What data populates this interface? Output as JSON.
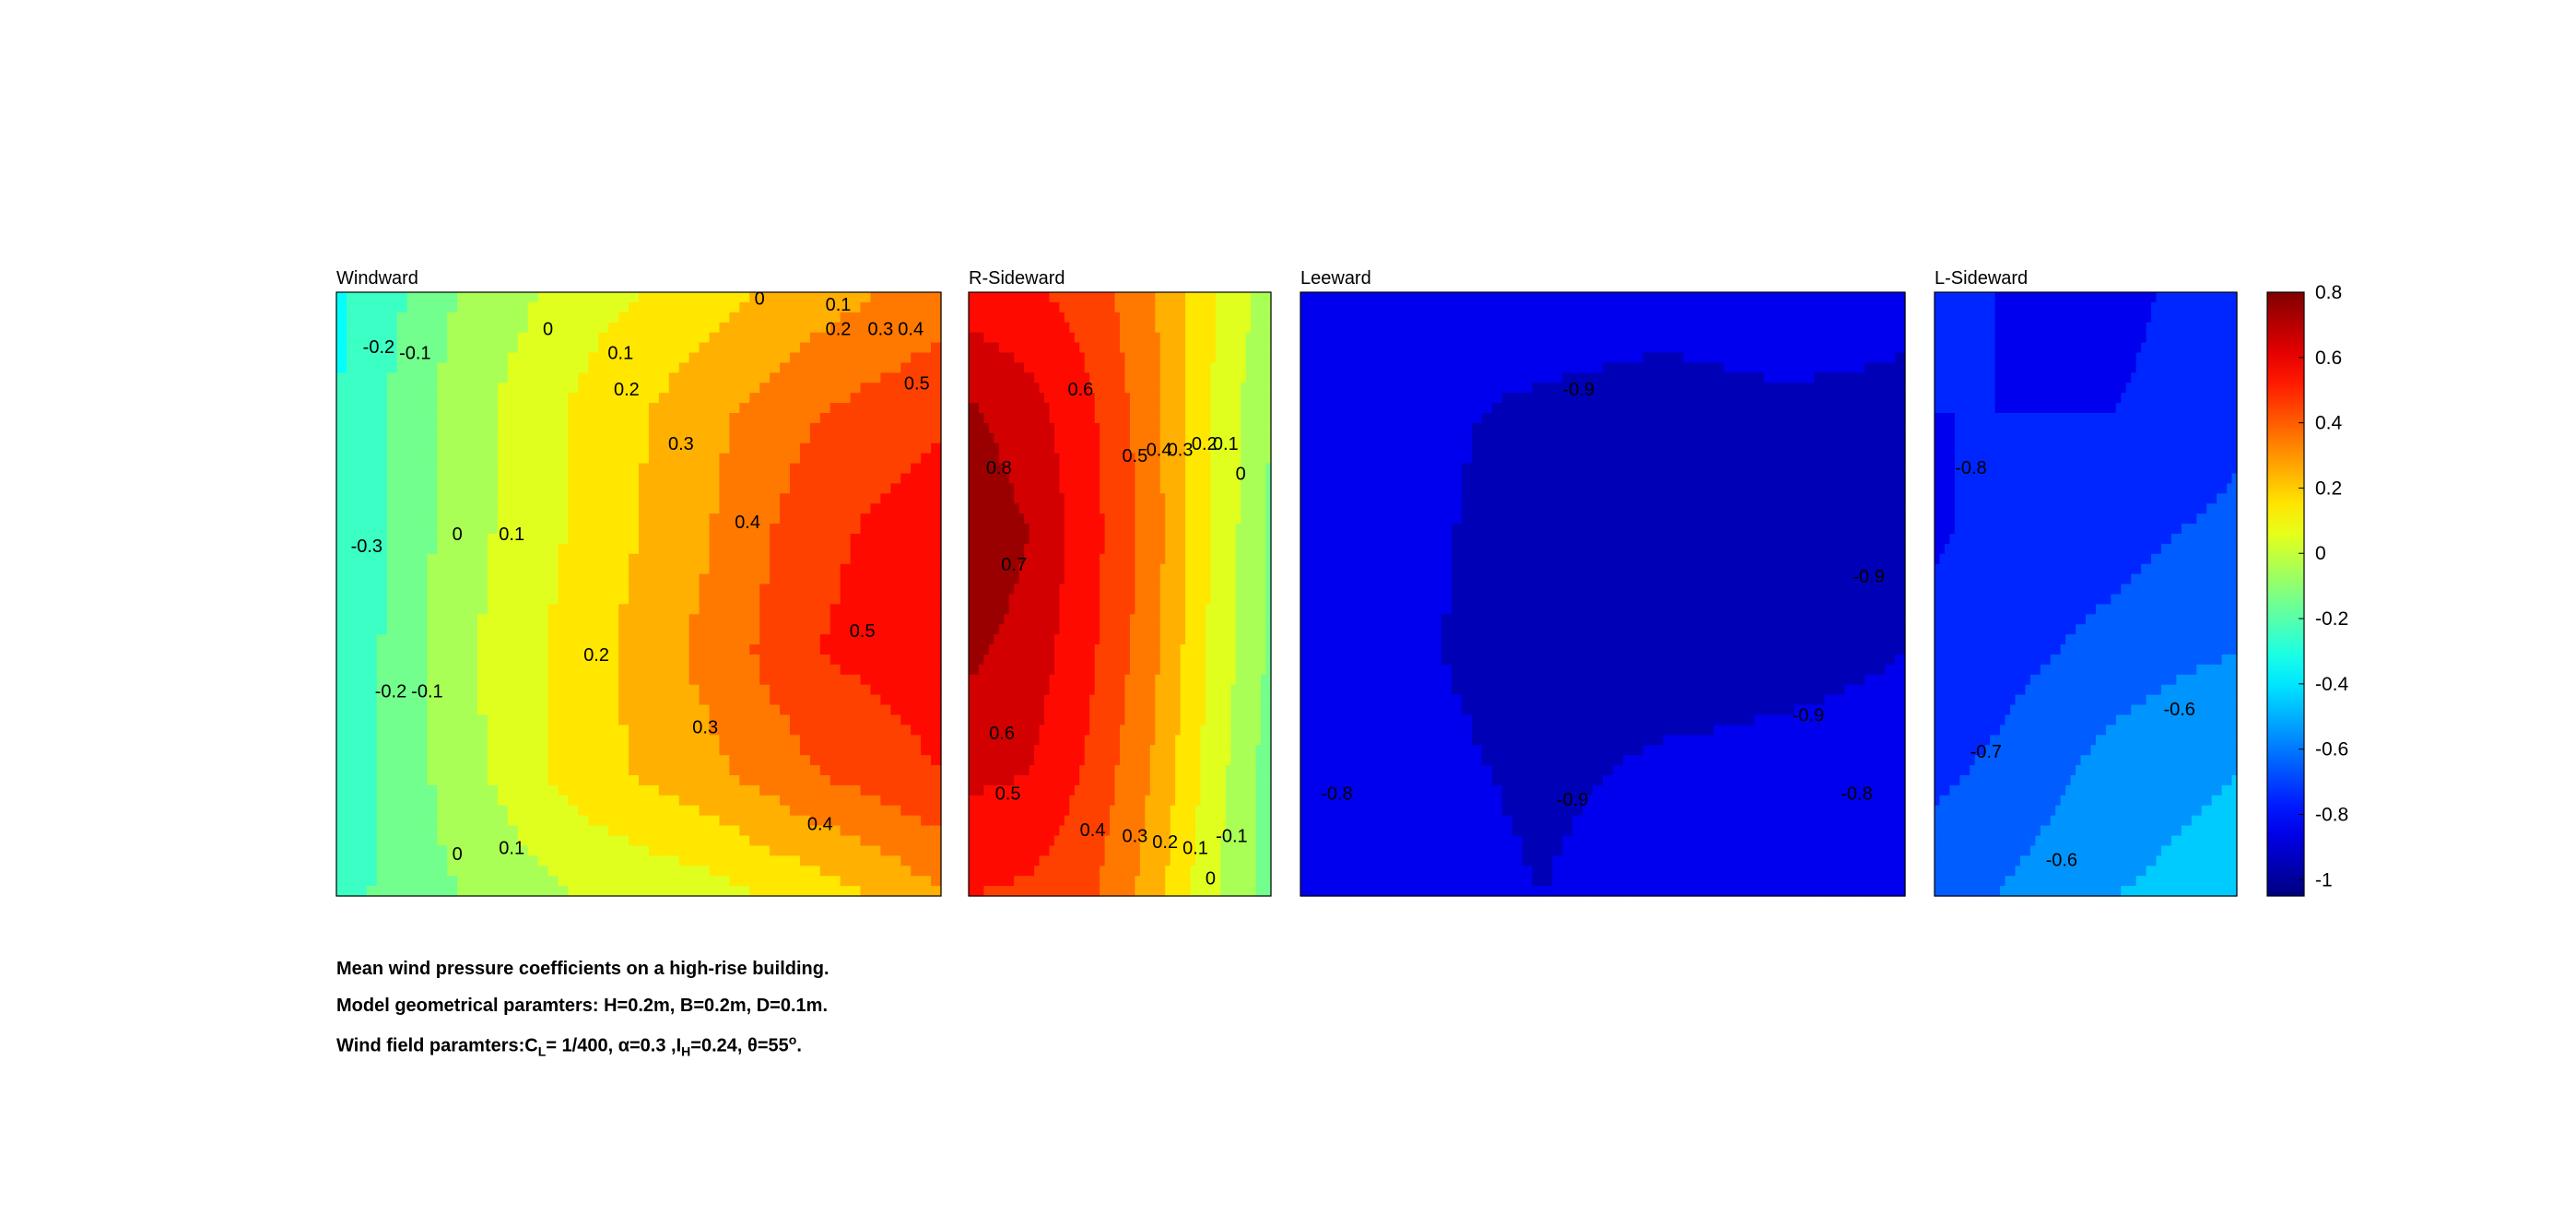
{
  "chart_data": [
    {
      "type": "contour",
      "title": "Windward",
      "colormap": "jet",
      "clim": [
        -1.05,
        0.8
      ],
      "x": [
        0,
        0.2,
        0.4,
        0.6,
        0.8,
        1.0
      ],
      "y": [
        0,
        0.2,
        0.4,
        0.6,
        0.8,
        1.0
      ],
      "z": [
        [
          -0.33,
          -0.1,
          0.05,
          0.15,
          0.25,
          0.35
        ],
        [
          -0.3,
          -0.05,
          0.12,
          0.26,
          0.4,
          0.48
        ],
        [
          -0.3,
          -0.05,
          0.12,
          0.28,
          0.48,
          0.56
        ],
        [
          -0.3,
          -0.03,
          0.15,
          0.32,
          0.5,
          0.56
        ],
        [
          -0.28,
          -0.05,
          0.15,
          0.26,
          0.4,
          0.5
        ],
        [
          -0.24,
          -0.1,
          0.0,
          0.05,
          0.15,
          0.28
        ]
      ],
      "contour_labels": [
        {
          "text": "-0.2",
          "x": 0.07,
          "y": 0.09
        },
        {
          "text": "-0.1",
          "x": 0.13,
          "y": 0.1
        },
        {
          "text": "0",
          "x": 0.35,
          "y": 0.06
        },
        {
          "text": "0",
          "x": 0.7,
          "y": 0.01
        },
        {
          "text": "0.1",
          "x": 0.83,
          "y": 0.02
        },
        {
          "text": "0.1",
          "x": 0.47,
          "y": 0.1
        },
        {
          "text": "0.2",
          "x": 0.83,
          "y": 0.06
        },
        {
          "text": "0.3",
          "x": 0.9,
          "y": 0.06
        },
        {
          "text": "0.4",
          "x": 0.95,
          "y": 0.06
        },
        {
          "text": "0.2",
          "x": 0.48,
          "y": 0.16
        },
        {
          "text": "0.5",
          "x": 0.96,
          "y": 0.15
        },
        {
          "text": "0.3",
          "x": 0.57,
          "y": 0.25
        },
        {
          "text": "-0.3",
          "x": 0.05,
          "y": 0.42
        },
        {
          "text": "0",
          "x": 0.2,
          "y": 0.4
        },
        {
          "text": "0.1",
          "x": 0.29,
          "y": 0.4
        },
        {
          "text": "0.4",
          "x": 0.68,
          "y": 0.38
        },
        {
          "text": "0.5",
          "x": 0.87,
          "y": 0.56
        },
        {
          "text": "0.2",
          "x": 0.43,
          "y": 0.6
        },
        {
          "text": "-0.2",
          "x": 0.09,
          "y": 0.66
        },
        {
          "text": "-0.1",
          "x": 0.15,
          "y": 0.66
        },
        {
          "text": "0.3",
          "x": 0.61,
          "y": 0.72
        },
        {
          "text": "0.4",
          "x": 0.8,
          "y": 0.88
        },
        {
          "text": "0",
          "x": 0.2,
          "y": 0.93
        },
        {
          "text": "0.1",
          "x": 0.29,
          "y": 0.92
        }
      ]
    },
    {
      "type": "contour",
      "title": "R-Sideward",
      "colormap": "jet",
      "clim": [
        -1.05,
        0.8
      ],
      "x": [
        0,
        0.2,
        0.4,
        0.6,
        0.8,
        1.0
      ],
      "y": [
        0,
        0.2,
        0.4,
        0.6,
        0.8,
        1.0
      ],
      "z": [
        [
          0.55,
          0.52,
          0.45,
          0.32,
          0.12,
          -0.05
        ],
        [
          0.72,
          0.64,
          0.52,
          0.34,
          0.1,
          -0.1
        ],
        [
          0.78,
          0.7,
          0.54,
          0.36,
          0.1,
          -0.12
        ],
        [
          0.72,
          0.66,
          0.52,
          0.34,
          0.08,
          -0.12
        ],
        [
          0.62,
          0.6,
          0.48,
          0.3,
          0.06,
          -0.15
        ],
        [
          0.5,
          0.48,
          0.42,
          0.26,
          0.02,
          -0.15
        ]
      ],
      "contour_labels": [
        {
          "text": "0.6",
          "x": 0.37,
          "y": 0.16
        },
        {
          "text": "0.8",
          "x": 0.1,
          "y": 0.29
        },
        {
          "text": "0.5",
          "x": 0.55,
          "y": 0.27
        },
        {
          "text": "0.4",
          "x": 0.63,
          "y": 0.26
        },
        {
          "text": "0.3",
          "x": 0.7,
          "y": 0.26
        },
        {
          "text": "0.2",
          "x": 0.78,
          "y": 0.25
        },
        {
          "text": "0.1",
          "x": 0.85,
          "y": 0.25
        },
        {
          "text": "0",
          "x": 0.9,
          "y": 0.3
        },
        {
          "text": "0.7",
          "x": 0.15,
          "y": 0.45
        },
        {
          "text": "0.6",
          "x": 0.11,
          "y": 0.73
        },
        {
          "text": "0.5",
          "x": 0.13,
          "y": 0.83
        },
        {
          "text": "0.4",
          "x": 0.41,
          "y": 0.89
        },
        {
          "text": "0.3",
          "x": 0.55,
          "y": 0.9
        },
        {
          "text": "0.2",
          "x": 0.65,
          "y": 0.91
        },
        {
          "text": "0.1",
          "x": 0.75,
          "y": 0.92
        },
        {
          "text": "-0.1",
          "x": 0.87,
          "y": 0.9
        },
        {
          "text": "0",
          "x": 0.8,
          "y": 0.97
        }
      ]
    },
    {
      "type": "contour",
      "title": "Leeward",
      "colormap": "jet",
      "clim": [
        -1.05,
        0.8
      ],
      "x": [
        0,
        0.2,
        0.4,
        0.6,
        0.8,
        1.0
      ],
      "y": [
        0,
        0.2,
        0.4,
        0.6,
        0.8,
        1.0
      ],
      "z": [
        [
          -0.85,
          -0.86,
          -0.84,
          -0.86,
          -0.84,
          -0.88
        ],
        [
          -0.86,
          -0.88,
          -0.92,
          -0.94,
          -0.92,
          -0.92
        ],
        [
          -0.86,
          -0.88,
          -0.95,
          -0.95,
          -0.94,
          -0.92
        ],
        [
          -0.86,
          -0.89,
          -0.95,
          -0.95,
          -0.94,
          -0.9
        ],
        [
          -0.86,
          -0.87,
          -0.92,
          -0.88,
          -0.86,
          -0.84
        ],
        [
          -0.86,
          -0.86,
          -0.9,
          -0.84,
          -0.83,
          -0.8
        ]
      ],
      "contour_labels": [
        {
          "text": "-0.9",
          "x": 0.46,
          "y": 0.16
        },
        {
          "text": "-0.9",
          "x": 0.94,
          "y": 0.47
        },
        {
          "text": "-0.9",
          "x": 0.84,
          "y": 0.7
        },
        {
          "text": "-0.8",
          "x": 0.06,
          "y": 0.83
        },
        {
          "text": "-0.9",
          "x": 0.45,
          "y": 0.84
        },
        {
          "text": "-0.8",
          "x": 0.92,
          "y": 0.83
        }
      ]
    },
    {
      "type": "contour",
      "title": "L-Sideward",
      "colormap": "jet",
      "clim": [
        -1.05,
        0.8
      ],
      "x": [
        0,
        0.2,
        0.4,
        0.6,
        0.8,
        1.0
      ],
      "y": [
        0,
        0.2,
        0.4,
        0.6,
        0.8,
        1.0
      ],
      "z": [
        [
          -0.78,
          -0.8,
          -0.82,
          -0.84,
          -0.78,
          -0.74
        ],
        [
          -0.8,
          -0.8,
          -0.8,
          -0.8,
          -0.76,
          -0.72
        ],
        [
          -0.81,
          -0.78,
          -0.76,
          -0.74,
          -0.7,
          -0.68
        ],
        [
          -0.78,
          -0.74,
          -0.7,
          -0.66,
          -0.62,
          -0.6
        ],
        [
          -0.72,
          -0.68,
          -0.62,
          -0.55,
          -0.52,
          -0.5
        ],
        [
          -0.64,
          -0.6,
          -0.55,
          -0.5,
          -0.48,
          -0.46
        ]
      ],
      "contour_labels": [
        {
          "text": "-0.8",
          "x": 0.12,
          "y": 0.29
        },
        {
          "text": "-0.7",
          "x": 0.17,
          "y": 0.76
        },
        {
          "text": "-0.6",
          "x": 0.81,
          "y": 0.69
        },
        {
          "text": "-0.6",
          "x": 0.42,
          "y": 0.94
        }
      ]
    }
  ],
  "colorbar": {
    "ticks": [
      {
        "value": 0.8,
        "label": "0.8"
      },
      {
        "value": 0.6,
        "label": "0.6"
      },
      {
        "value": 0.4,
        "label": "0.4"
      },
      {
        "value": 0.2,
        "label": "0.2"
      },
      {
        "value": 0,
        "label": "0"
      },
      {
        "value": -0.2,
        "label": "-0.2"
      },
      {
        "value": -0.4,
        "label": "-0.4"
      },
      {
        "value": -0.6,
        "label": "-0.6"
      },
      {
        "value": -0.8,
        "label": "-0.8"
      },
      {
        "value": -1,
        "label": "-1"
      }
    ],
    "range": [
      -1.05,
      0.8
    ]
  },
  "captions": {
    "line1": "Mean wind pressure coefficients on a high-rise building.",
    "line2": "Model geometrical paramters: H=0.2m, B=0.2m, D=0.1m.",
    "line3_prefix": "Wind field paramters:C",
    "line3_cl_sub": "L",
    "line3_mid": "= 1/400, α=0.3 ,I",
    "line3_ih_sub": "H",
    "line3_suffix": "=0.24, θ=55",
    "line3_sup": "o",
    "line3_end": "."
  }
}
